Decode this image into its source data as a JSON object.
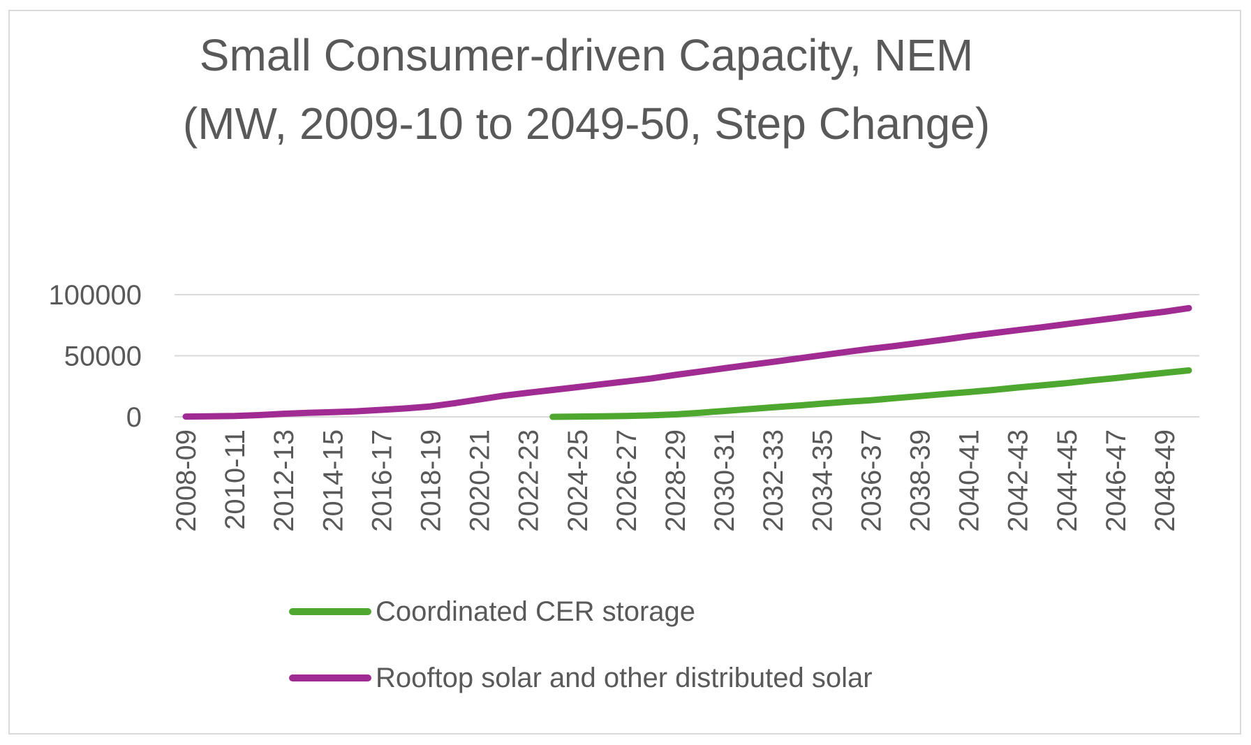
{
  "chart_data": {
    "type": "line",
    "title": "Small Consumer-driven Capacity, NEM\n(MW, 2009-10 to 2049-50, Step Change)",
    "title_lines": [
      "Small Consumer-driven Capacity, NEM",
      "(MW, 2009-10 to 2049-50, Step Change)"
    ],
    "xlabel": "",
    "ylabel": "",
    "ylim": [
      0,
      100000
    ],
    "yticks": [
      0,
      50000,
      100000
    ],
    "grid": true,
    "legend_position": "bottom",
    "x": [
      "2008-09",
      "2009-10",
      "2010-11",
      "2011-12",
      "2012-13",
      "2013-14",
      "2014-15",
      "2015-16",
      "2016-17",
      "2017-18",
      "2018-19",
      "2019-20",
      "2020-21",
      "2021-22",
      "2022-23",
      "2023-24",
      "2024-25",
      "2025-26",
      "2026-27",
      "2027-28",
      "2028-29",
      "2029-30",
      "2030-31",
      "2031-32",
      "2032-33",
      "2033-34",
      "2034-35",
      "2035-36",
      "2036-37",
      "2037-38",
      "2038-39",
      "2039-40",
      "2040-41",
      "2041-42",
      "2042-43",
      "2043-44",
      "2044-45",
      "2045-46",
      "2046-47",
      "2047-48",
      "2048-49",
      "2049-50"
    ],
    "x_tick_labels": [
      "2008-09",
      "2010-11",
      "2012-13",
      "2014-15",
      "2016-17",
      "2018-19",
      "2020-21",
      "2022-23",
      "2024-25",
      "2026-27",
      "2028-29",
      "2030-31",
      "2032-33",
      "2034-35",
      "2036-37",
      "2038-39",
      "2040-41",
      "2042-43",
      "2044-45",
      "2046-47",
      "2048-49"
    ],
    "series": [
      {
        "name": "Coordinated CER storage",
        "color": "#4ea72e",
        "values": [
          null,
          null,
          null,
          null,
          null,
          null,
          null,
          null,
          null,
          null,
          null,
          null,
          null,
          null,
          null,
          0,
          200,
          400,
          700,
          1200,
          2000,
          3300,
          4800,
          6300,
          7800,
          9200,
          10800,
          12300,
          13600,
          15300,
          17000,
          18700,
          20300,
          22000,
          24000,
          25800,
          27600,
          29800,
          31700,
          33900,
          36000,
          38000
        ]
      },
      {
        "name": "Rooftop solar and other distributed solar",
        "color": "#a02b93",
        "values": [
          200,
          400,
          700,
          1400,
          2500,
          3300,
          3900,
          4600,
          5700,
          6900,
          8500,
          11200,
          14200,
          17300,
          19700,
          22000,
          24300,
          26700,
          29000,
          31300,
          34300,
          37000,
          39700,
          42400,
          45000,
          47700,
          50400,
          53100,
          55700,
          58000,
          60600,
          63200,
          66000,
          68500,
          71000,
          73300,
          75900,
          78400,
          80900,
          83600,
          86000,
          89000
        ]
      }
    ]
  }
}
